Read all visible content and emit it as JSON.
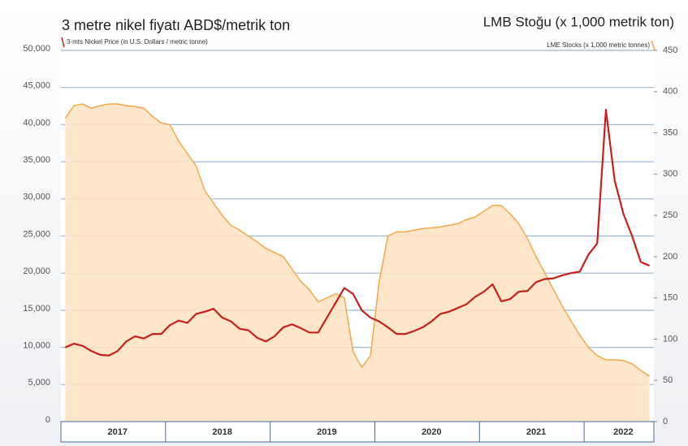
{
  "chart_data": {
    "type": "line",
    "title": "3 metre nikel fiyatı ABD$/metrik ton",
    "subtitle": "3-mts Nickel Price (in U.S. Dollars / metric tonne)",
    "y2_title": "LMB Stoğu (x 1,000 metrik ton)",
    "y2_subtitle": "LME Stocks (x 1,000 metric tonnes)",
    "categories": [
      null,
      null,
      null,
      null,
      null,
      null,
      "2017",
      null,
      null,
      null,
      null,
      null,
      null,
      null,
      null,
      null,
      null,
      null,
      "2018",
      null,
      null,
      null,
      null,
      null,
      null,
      null,
      null,
      null,
      null,
      null,
      "2019",
      null,
      null,
      null,
      null,
      null,
      null,
      null,
      null,
      null,
      null,
      null,
      "2020",
      null,
      null,
      null,
      null,
      null,
      null,
      null,
      null,
      null,
      null,
      null,
      "2021",
      null,
      null,
      null,
      null,
      null,
      null,
      null,
      null,
      null,
      "2022",
      null,
      null,
      null
    ],
    "series": [
      {
        "name": "LME Stocks (x 1,000 metric tonnes)",
        "type": "area",
        "axis": "y2",
        "color": "#f2a94e",
        "fill": "#fde3c4",
        "values": [
          368,
          383,
          385,
          380,
          383,
          385,
          385,
          383,
          382,
          380,
          370,
          362,
          360,
          340,
          325,
          310,
          280,
          265,
          250,
          238,
          232,
          225,
          218,
          210,
          205,
          200,
          185,
          170,
          160,
          145,
          150,
          155,
          150,
          85,
          66,
          80,
          170,
          225,
          230,
          230,
          232,
          234,
          235,
          236,
          238,
          240,
          245,
          248,
          255,
          262,
          262,
          252,
          240,
          222,
          200,
          180,
          160,
          140,
          122,
          105,
          90,
          80,
          75,
          75,
          74,
          70,
          62,
          55
        ]
      },
      {
        "name": "3-mts Nickel Price (in U.S. Dollars / metric tonne)",
        "type": "line",
        "color": "#c8201c",
        "values": [
          10000,
          10500,
          10200,
          9500,
          9000,
          8900,
          9500,
          10800,
          11500,
          11200,
          11800,
          11800,
          13000,
          13600,
          13300,
          14500,
          14800,
          15200,
          14000,
          13500,
          12500,
          12300,
          11300,
          10800,
          11500,
          12700,
          13100,
          12600,
          12000,
          12000,
          14000,
          16000,
          18000,
          17200,
          15000,
          14000,
          13500,
          12700,
          11800,
          11800,
          12200,
          12700,
          13500,
          14500,
          14800,
          15300,
          15800,
          16800,
          17500,
          18500,
          16200,
          16500,
          17500,
          17600,
          18800,
          19200,
          19300,
          19700,
          20000,
          20200,
          22500,
          24000,
          42000,
          32500,
          28000,
          25000,
          21500,
          21000
        ]
      }
    ],
    "ylim": [
      0,
      50000
    ],
    "yticks": [
      0,
      {
        "value": 5000,
        "label": "5,000"
      },
      {
        "value": 10000,
        "label": "10,000"
      },
      {
        "value": 15000,
        "label": "15,000"
      },
      {
        "value": 20000,
        "label": "20,000"
      },
      {
        "value": 25000,
        "label": "25,000"
      },
      {
        "value": 30000,
        "label": "30,000"
      },
      {
        "value": 35000,
        "label": "35,000"
      },
      {
        "value": 40000,
        "label": "40,000"
      },
      {
        "value": 45000,
        "label": "45,000"
      },
      {
        "value": 50000,
        "label": "50,000"
      }
    ],
    "y2lim": [
      0,
      450
    ],
    "y2ticks": [
      0,
      50,
      100,
      150,
      200,
      250,
      300,
      350,
      400,
      450
    ],
    "grid": true
  }
}
